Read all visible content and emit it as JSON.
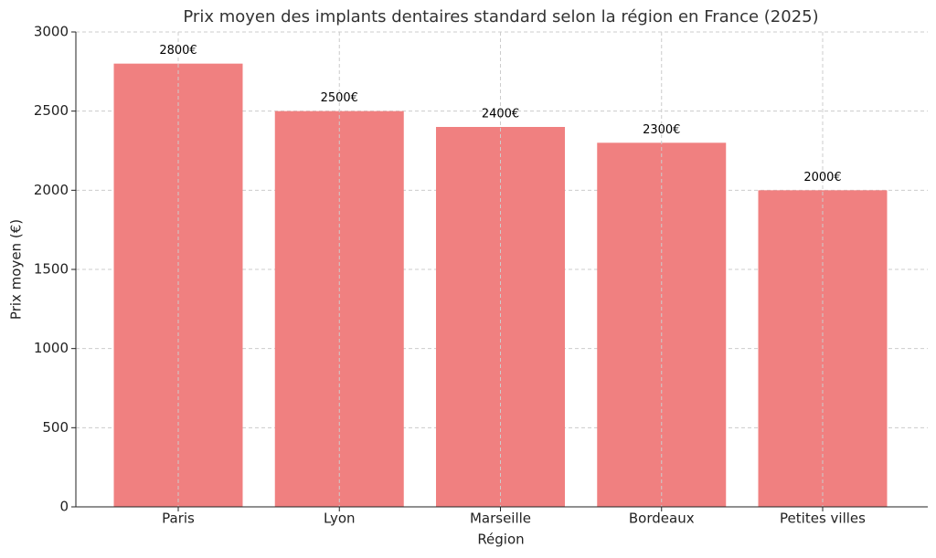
{
  "chart_data": {
    "type": "bar",
    "title": "Prix moyen des implants dentaires standard selon la région en France (2025)",
    "x_label": "Région",
    "y_label": "Prix moyen (€)",
    "categories": [
      "Paris",
      "Lyon",
      "Marseille",
      "Bordeaux",
      "Petites villes"
    ],
    "values": [
      2800,
      2500,
      2400,
      2300,
      2000
    ],
    "value_labels": [
      "2800€",
      "2500€",
      "2400€",
      "2300€",
      "2000€"
    ],
    "color": "#f08080",
    "ylim": [
      0,
      3000
    ],
    "yticks": [
      0,
      500,
      1000,
      1500,
      2000,
      2500,
      3000
    ],
    "grid": true
  }
}
